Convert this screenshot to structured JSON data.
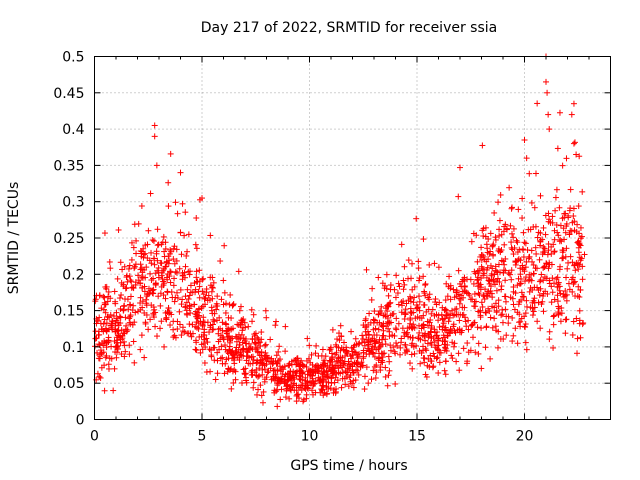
{
  "chart_data": {
    "type": "scatter",
    "title": "Day 217 of 2022, SRMTID for receiver ssia",
    "xlabel": "GPS time / hours",
    "ylabel": "SRMTID / TECUs",
    "xlim": [
      0,
      24
    ],
    "ylim": [
      0,
      0.5
    ],
    "xticks": [
      0,
      5,
      10,
      15,
      20
    ],
    "yticks": [
      0,
      0.05,
      0.1,
      0.15,
      0.2,
      0.25,
      0.3,
      0.35,
      0.4,
      0.45,
      0.5
    ],
    "grid": true,
    "marker": "+",
    "color": "#ff0000",
    "series": [
      {
        "name": "SRMTID",
        "trend": {
          "x": [
            0,
            1,
            2,
            3,
            4,
            5,
            6,
            7,
            8,
            9,
            10,
            11,
            12,
            13,
            14,
            15,
            16,
            17,
            18,
            19,
            20,
            21,
            22,
            22.8
          ],
          "y": [
            0.12,
            0.12,
            0.18,
            0.19,
            0.19,
            0.14,
            0.11,
            0.1,
            0.07,
            0.06,
            0.06,
            0.07,
            0.08,
            0.1,
            0.14,
            0.14,
            0.12,
            0.14,
            0.18,
            0.2,
            0.2,
            0.21,
            0.22,
            0.2
          ]
        },
        "notable_points": [
          {
            "x": 2.8,
            "y": 0.405
          },
          {
            "x": 2.8,
            "y": 0.39
          },
          {
            "x": 2.9,
            "y": 0.35
          },
          {
            "x": 4.0,
            "y": 0.34
          },
          {
            "x": 5.0,
            "y": 0.305
          },
          {
            "x": 17.0,
            "y": 0.347
          },
          {
            "x": 20.0,
            "y": 0.385
          },
          {
            "x": 20.1,
            "y": 0.36
          },
          {
            "x": 21.0,
            "y": 0.5
          },
          {
            "x": 21.0,
            "y": 0.465
          },
          {
            "x": 21.05,
            "y": 0.45
          },
          {
            "x": 21.1,
            "y": 0.42
          },
          {
            "x": 21.15,
            "y": 0.4
          },
          {
            "x": 22.3,
            "y": 0.435
          },
          {
            "x": 22.2,
            "y": 0.42
          },
          {
            "x": 22.3,
            "y": 0.38
          },
          {
            "x": 22.4,
            "y": 0.365
          },
          {
            "x": 8.5,
            "y": 0.018
          },
          {
            "x": 9.7,
            "y": 0.025
          }
        ]
      }
    ]
  }
}
